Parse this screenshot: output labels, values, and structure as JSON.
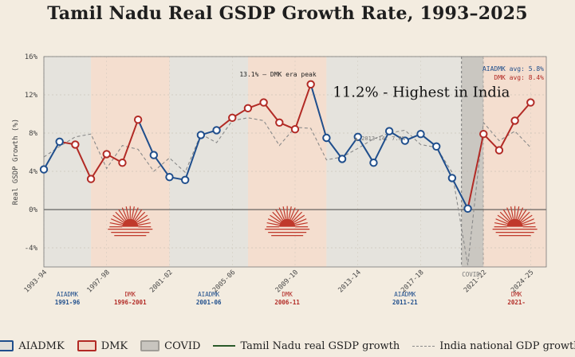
{
  "chart_data": {
    "type": "line",
    "title": "Tamil Nadu Real GSDP Growth Rate, 1993–2025",
    "ylabel": "Real GSDP Growth (%)",
    "ylim": [
      -6,
      16
    ],
    "yticks": [
      -4,
      0,
      4,
      8,
      12,
      16
    ],
    "ytick_labels": [
      "-4%",
      "0%",
      "4%",
      "8%",
      "12%",
      "16%"
    ],
    "xlim": [
      1993,
      2025
    ],
    "xticks": [
      {
        "x": 1993,
        "label": "1993-94"
      },
      {
        "x": 1997,
        "label": "1997-98"
      },
      {
        "x": 2001,
        "label": "2001-02"
      },
      {
        "x": 2005,
        "label": "2005-06"
      },
      {
        "x": 2009,
        "label": "2009-10"
      },
      {
        "x": 2013,
        "label": "2013-14"
      },
      {
        "x": 2017,
        "label": "2017-18"
      },
      {
        "x": 2021,
        "label": "2021-22"
      },
      {
        "x": 2024,
        "label": "2024-25"
      }
    ],
    "periods": [
      {
        "party": "AIADMK",
        "start": 1993,
        "end": 1996,
        "label": "AIADMK",
        "years": "1991-96"
      },
      {
        "party": "DMK",
        "start": 1996,
        "end": 2001,
        "label": "DMK",
        "years": "1996-2001"
      },
      {
        "party": "AIADMK",
        "start": 2001,
        "end": 2006,
        "label": "AIADMK",
        "years": "2001-06"
      },
      {
        "party": "DMK",
        "start": 2006,
        "end": 2011,
        "label": "DMK",
        "years": "2006-11"
      },
      {
        "party": "AIADMK",
        "start": 2011,
        "end": 2021,
        "label": "AIADMK",
        "years": "2011-21"
      },
      {
        "party": "COVID",
        "start": 2019.6,
        "end": 2021,
        "label": "COVID",
        "years": ""
      },
      {
        "party": "DMK",
        "start": 2021,
        "end": 2025,
        "label": "DMK",
        "years": "2021-"
      }
    ],
    "series": [
      {
        "name": "Tamil Nadu real GSDP growth",
        "points": [
          {
            "x": 1993,
            "y": 4.2,
            "party": "AIADMK"
          },
          {
            "x": 1994,
            "y": 7.1,
            "party": "AIADMK"
          },
          {
            "x": 1995,
            "y": 6.8,
            "party": "DMK"
          },
          {
            "x": 1996,
            "y": 3.2,
            "party": "DMK"
          },
          {
            "x": 1997,
            "y": 5.8,
            "party": "DMK"
          },
          {
            "x": 1998,
            "y": 4.9,
            "party": "DMK"
          },
          {
            "x": 1999,
            "y": 9.4,
            "party": "DMK"
          },
          {
            "x": 2000,
            "y": 5.7,
            "party": "AIADMK"
          },
          {
            "x": 2001,
            "y": 3.4,
            "party": "AIADMK"
          },
          {
            "x": 2002,
            "y": 3.1,
            "party": "AIADMK"
          },
          {
            "x": 2003,
            "y": 7.8,
            "party": "AIADMK"
          },
          {
            "x": 2004,
            "y": 8.3,
            "party": "AIADMK"
          },
          {
            "x": 2005,
            "y": 9.6,
            "party": "DMK"
          },
          {
            "x": 2006,
            "y": 10.6,
            "party": "DMK"
          },
          {
            "x": 2007,
            "y": 11.2,
            "party": "DMK"
          },
          {
            "x": 2008,
            "y": 9.1,
            "party": "DMK"
          },
          {
            "x": 2009,
            "y": 8.4,
            "party": "DMK"
          },
          {
            "x": 2010,
            "y": 13.1,
            "party": "DMK"
          },
          {
            "x": 2011,
            "y": 7.5,
            "party": "AIADMK"
          },
          {
            "x": 2012,
            "y": 5.3,
            "party": "AIADMK"
          },
          {
            "x": 2013,
            "y": 7.6,
            "party": "AIADMK"
          },
          {
            "x": 2014,
            "y": 4.9,
            "party": "AIADMK"
          },
          {
            "x": 2015,
            "y": 8.2,
            "party": "AIADMK"
          },
          {
            "x": 2016,
            "y": 7.2,
            "party": "AIADMK"
          },
          {
            "x": 2017,
            "y": 7.9,
            "party": "AIADMK"
          },
          {
            "x": 2018,
            "y": 6.6,
            "party": "AIADMK"
          },
          {
            "x": 2019,
            "y": 3.3,
            "party": "AIADMK"
          },
          {
            "x": 2020,
            "y": 0.1,
            "party": "AIADMK"
          },
          {
            "x": 2021,
            "y": 7.9,
            "party": "DMK"
          },
          {
            "x": 2022,
            "y": 6.2,
            "party": "DMK"
          },
          {
            "x": 2023,
            "y": 9.3,
            "party": "DMK"
          },
          {
            "x": 2024,
            "y": 11.2,
            "party": "DMK"
          }
        ]
      },
      {
        "name": "India national GDP growth",
        "points": [
          {
            "x": 1993,
            "y": 5.5
          },
          {
            "x": 1994,
            "y": 6.6
          },
          {
            "x": 1995,
            "y": 7.6
          },
          {
            "x": 1996,
            "y": 7.9
          },
          {
            "x": 1997,
            "y": 4.3
          },
          {
            "x": 1998,
            "y": 6.7
          },
          {
            "x": 1999,
            "y": 6.3
          },
          {
            "x": 2000,
            "y": 4.0
          },
          {
            "x": 2001,
            "y": 5.4
          },
          {
            "x": 2002,
            "y": 3.9
          },
          {
            "x": 2003,
            "y": 7.9
          },
          {
            "x": 2004,
            "y": 7.0
          },
          {
            "x": 2005,
            "y": 9.3
          },
          {
            "x": 2006,
            "y": 9.6
          },
          {
            "x": 2007,
            "y": 9.3
          },
          {
            "x": 2008,
            "y": 6.7
          },
          {
            "x": 2009,
            "y": 8.6
          },
          {
            "x": 2010,
            "y": 8.5
          },
          {
            "x": 2011,
            "y": 5.2
          },
          {
            "x": 2012,
            "y": 5.5
          },
          {
            "x": 2013,
            "y": 6.4
          },
          {
            "x": 2014,
            "y": 7.4
          },
          {
            "x": 2015,
            "y": 8.0
          },
          {
            "x": 2016,
            "y": 8.3
          },
          {
            "x": 2017,
            "y": 6.8
          },
          {
            "x": 2018,
            "y": 6.5
          },
          {
            "x": 2019,
            "y": 3.9
          },
          {
            "x": 2020,
            "y": -5.8
          },
          {
            "x": 2021,
            "y": 9.1
          },
          {
            "x": 2022,
            "y": 7.2
          },
          {
            "x": 2023,
            "y": 8.2
          },
          {
            "x": 2024,
            "y": 6.5
          }
        ]
      }
    ],
    "annotations": {
      "peak": {
        "text": "13.1% – DMK era peak",
        "x": 2010,
        "y": 13.1
      },
      "highest": {
        "text": "11.2% - Highest in India",
        "x": 2024,
        "y": 11.2
      },
      "india_note": {
        "text": "▲ 2013-14: 7.6%",
        "x": 2013,
        "y": 7.6
      },
      "aiadmk_avg": "AIADMK avg: 5.8%",
      "dmk_avg": "DMK avg: 8.4%",
      "covid": "COVID"
    },
    "legend": [
      {
        "label": "AIADMK",
        "kind": "box",
        "party": "AIADMK"
      },
      {
        "label": "DMK",
        "kind": "box",
        "party": "DMK"
      },
      {
        "label": "COVID",
        "kind": "box",
        "party": "COVID"
      },
      {
        "label": "Tamil Nadu real GSDP growth",
        "kind": "solid"
      },
      {
        "label": "India national GDP growth",
        "kind": "dashed"
      }
    ],
    "colors": {
      "AIADMK": "#1f4e8c",
      "DMK": "#b22a25",
      "COVID": "#a09d97",
      "aiadmk_bg": "#e1dfd9",
      "dmk_bg": "#f2d9c9",
      "covid_bg": "#c8c5bf",
      "legend_green": "#2a5a2a",
      "india": "#8a8a8a",
      "sun": "#c0392b"
    }
  }
}
